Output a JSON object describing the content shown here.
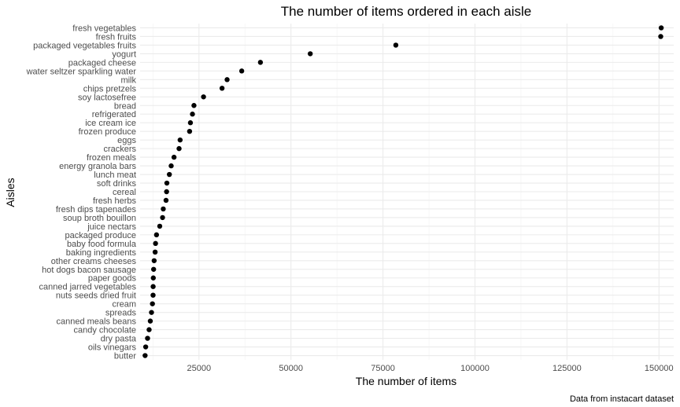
{
  "chart_data": {
    "type": "scatter",
    "title": "The number of items ordered in each aisle",
    "xlabel": "The number of items",
    "ylabel": "Aisles",
    "caption": "Data from instacart dataset",
    "xlim": [
      9000,
      154000
    ],
    "xticks": [
      25000,
      50000,
      75000,
      100000,
      125000,
      150000
    ],
    "xtick_labels": [
      "25000",
      "50000",
      "75000",
      "100000",
      "125000",
      "150000"
    ],
    "grid": true,
    "point_color": "#000000",
    "points": [
      {
        "aisle": "fresh vegetables",
        "n": 150609
      },
      {
        "aisle": "fresh fruits",
        "n": 150473
      },
      {
        "aisle": "packaged vegetables fruits",
        "n": 78493
      },
      {
        "aisle": "yogurt",
        "n": 55240
      },
      {
        "aisle": "packaged cheese",
        "n": 41699
      },
      {
        "aisle": "water seltzer sparkling water",
        "n": 36617
      },
      {
        "aisle": "milk",
        "n": 32644
      },
      {
        "aisle": "chips pretzels",
        "n": 31269
      },
      {
        "aisle": "soy lactosefree",
        "n": 26240
      },
      {
        "aisle": "bread",
        "n": 23635
      },
      {
        "aisle": "refrigerated",
        "n": 23228
      },
      {
        "aisle": "ice cream ice",
        "n": 22676
      },
      {
        "aisle": "frozen produce",
        "n": 22453
      },
      {
        "aisle": "eggs",
        "n": 19875
      },
      {
        "aisle": "crackers",
        "n": 19592
      },
      {
        "aisle": "frozen meals",
        "n": 18221
      },
      {
        "aisle": "energy granola bars",
        "n": 17449
      },
      {
        "aisle": "lunch meat",
        "n": 16957
      },
      {
        "aisle": "soft drinks",
        "n": 16279
      },
      {
        "aisle": "cereal",
        "n": 16201
      },
      {
        "aisle": "fresh herbs",
        "n": 16052
      },
      {
        "aisle": "fresh dips tapenades",
        "n": 15298
      },
      {
        "aisle": "soup broth bouillon",
        "n": 15103
      },
      {
        "aisle": "juice nectars",
        "n": 14341
      },
      {
        "aisle": "packaged produce",
        "n": 13460
      },
      {
        "aisle": "baby food formula",
        "n": 13198
      },
      {
        "aisle": "baking ingredients",
        "n": 13088
      },
      {
        "aisle": "other creams cheeses",
        "n": 12820
      },
      {
        "aisle": "hot dogs bacon sausage",
        "n": 12676
      },
      {
        "aisle": "paper goods",
        "n": 12589
      },
      {
        "aisle": "canned jarred vegetables",
        "n": 12547
      },
      {
        "aisle": "nuts seeds dried fruit",
        "n": 12526
      },
      {
        "aisle": "cream",
        "n": 12356
      },
      {
        "aisle": "spreads",
        "n": 12102
      },
      {
        "aisle": "canned meals beans",
        "n": 11774
      },
      {
        "aisle": "candy chocolate",
        "n": 11453
      },
      {
        "aisle": "dry pasta",
        "n": 11029
      },
      {
        "aisle": "oils vinegars",
        "n": 10522
      },
      {
        "aisle": "butter",
        "n": 10361
      }
    ]
  }
}
